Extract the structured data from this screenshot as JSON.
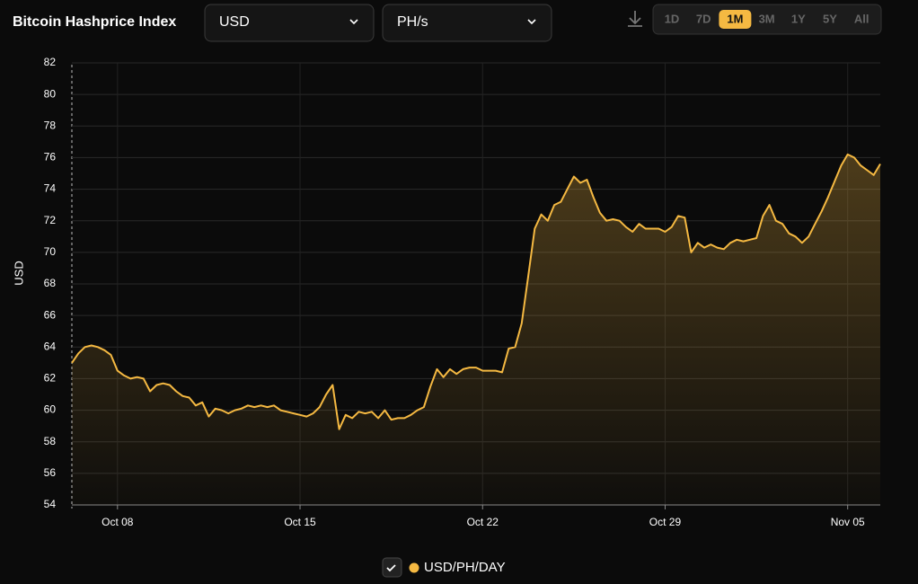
{
  "header": {
    "title": "Bitcoin Hashprice Index",
    "currency": "USD",
    "unit": "PH/s",
    "ranges": [
      {
        "label": "1D"
      },
      {
        "label": "7D"
      },
      {
        "label": "1M",
        "active": true
      },
      {
        "label": "3M"
      },
      {
        "label": "1Y"
      },
      {
        "label": "5Y"
      },
      {
        "label": "All"
      }
    ]
  },
  "chart_data": {
    "type": "line",
    "y_label": "USD",
    "categories": [
      null,
      null,
      null,
      null,
      null,
      null,
      null,
      "Oct 08",
      null,
      null,
      null,
      null,
      null,
      null,
      null,
      null,
      null,
      null,
      null,
      null,
      null,
      null,
      null,
      null,
      null,
      null,
      null,
      null,
      null,
      null,
      null,
      null,
      null,
      null,
      null,
      "Oct 15",
      null,
      null,
      null,
      null,
      null,
      null,
      null,
      null,
      null,
      null,
      null,
      null,
      null,
      null,
      null,
      null,
      null,
      null,
      null,
      null,
      null,
      null,
      null,
      null,
      null,
      null,
      null,
      "Oct 22",
      null,
      null,
      null,
      null,
      null,
      null,
      null,
      null,
      null,
      null,
      null,
      null,
      null,
      null,
      null,
      null,
      null,
      null,
      null,
      null,
      null,
      null,
      null,
      null,
      null,
      null,
      null,
      "Oct 29",
      null,
      null,
      null,
      null,
      null,
      null,
      null,
      null,
      null,
      null,
      null,
      null,
      null,
      null,
      null,
      null,
      null,
      null,
      null,
      null,
      null,
      null,
      null,
      null,
      null,
      null,
      null,
      "Nov 05",
      null,
      null,
      null,
      null,
      null
    ],
    "series": [
      {
        "name": "USD/PH/DAY",
        "color": "#f5b942",
        "values": [
          63.0,
          63.6,
          64.0,
          64.1,
          64.0,
          63.8,
          63.5,
          62.5,
          62.2,
          62.0,
          62.1,
          62.0,
          61.2,
          61.6,
          61.7,
          61.6,
          61.2,
          60.9,
          60.8,
          60.3,
          60.5,
          59.6,
          60.1,
          60.0,
          59.8,
          60.0,
          60.1,
          60.3,
          60.2,
          60.3,
          60.2,
          60.3,
          60.0,
          59.9,
          59.8,
          59.7,
          59.6,
          59.8,
          60.2,
          61.0,
          61.6,
          58.8,
          59.7,
          59.5,
          59.9,
          59.8,
          59.9,
          59.5,
          60.0,
          59.4,
          59.5,
          59.5,
          59.7,
          60.0,
          60.2,
          61.5,
          62.6,
          62.1,
          62.6,
          62.3,
          62.6,
          62.7,
          62.7,
          62.5,
          62.5,
          62.5,
          62.4,
          63.9,
          64.0,
          65.5,
          68.5,
          71.5,
          72.4,
          72.0,
          73.0,
          73.2,
          74.0,
          74.8,
          74.4,
          74.6,
          73.5,
          72.5,
          72.0,
          72.1,
          72.0,
          71.6,
          71.3,
          71.8,
          71.5,
          71.5,
          71.5,
          71.3,
          71.6,
          72.3,
          72.2,
          70.0,
          70.6,
          70.3,
          70.5,
          70.3,
          70.2,
          70.6,
          70.8,
          70.7,
          70.8,
          70.9,
          72.3,
          73.0,
          72.0,
          71.8,
          71.2,
          71.0,
          70.6,
          71.0,
          71.8,
          72.6,
          73.5,
          74.5,
          75.5,
          76.2,
          76.0,
          75.5,
          75.2,
          74.9,
          75.6
        ]
      }
    ],
    "ylim": [
      54,
      82
    ],
    "yticks": [
      54,
      56,
      58,
      60,
      62,
      64,
      66,
      68,
      70,
      72,
      74,
      76,
      78,
      80,
      82
    ],
    "grid": true
  }
}
